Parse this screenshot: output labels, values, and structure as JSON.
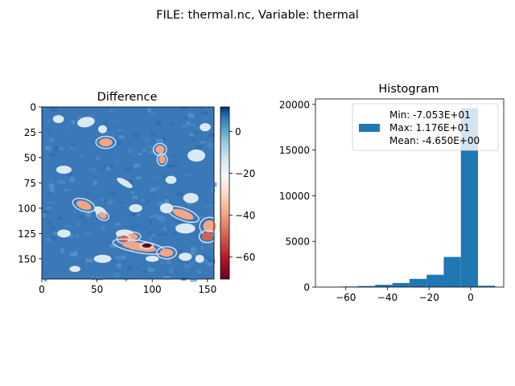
{
  "figure": {
    "suptitle": "FILE: thermal.nc, Variable: thermal"
  },
  "chart_data": [
    {
      "type": "heatmap",
      "title": "Difference",
      "xlabel": "",
      "ylabel": "",
      "xlim": [
        0,
        156
      ],
      "ylim": [
        170,
        0
      ],
      "xticks": [
        0,
        50,
        100,
        150
      ],
      "yticks": [
        0,
        25,
        50,
        75,
        100,
        125,
        150
      ],
      "colorbar": {
        "cmap": "RdBu",
        "vmin": -70.53,
        "vmax": 11.76,
        "ticks": [
          0,
          -20,
          -40,
          -60
        ],
        "tick_labels": [
          "0",
          "−20",
          "−40",
          "−60"
        ]
      },
      "colors": {
        "background_blue": "#3a78b8",
        "pale": "#dbe9f3",
        "warm": "#f4a582",
        "red": "#d6604d",
        "dark_red": "#67001f"
      }
    },
    {
      "type": "bar",
      "title": "Histogram",
      "xlabel": "",
      "ylabel": "",
      "xlim": [
        -74.6,
        15.9
      ],
      "ylim": [
        0,
        20600
      ],
      "xticks": [
        -60,
        -40,
        -20,
        0
      ],
      "xtick_labels": [
        "−60",
        "−40",
        "−20",
        "0"
      ],
      "yticks": [
        0,
        5000,
        10000,
        15000,
        20000
      ],
      "bin_edges": [
        -70.53,
        -62.3,
        -54.07,
        -45.84,
        -37.61,
        -29.38,
        -21.16,
        -12.93,
        -4.7,
        3.53,
        11.76
      ],
      "values": [
        20,
        60,
        120,
        250,
        450,
        900,
        1350,
        3300,
        19600,
        150
      ],
      "bar_color": "#1f77b4",
      "legend": {
        "position": "upper right",
        "label_lines": [
          "Min: -7.053E+01",
          "Max: 1.176E+01",
          "Mean: -4.650E+00"
        ]
      }
    }
  ]
}
